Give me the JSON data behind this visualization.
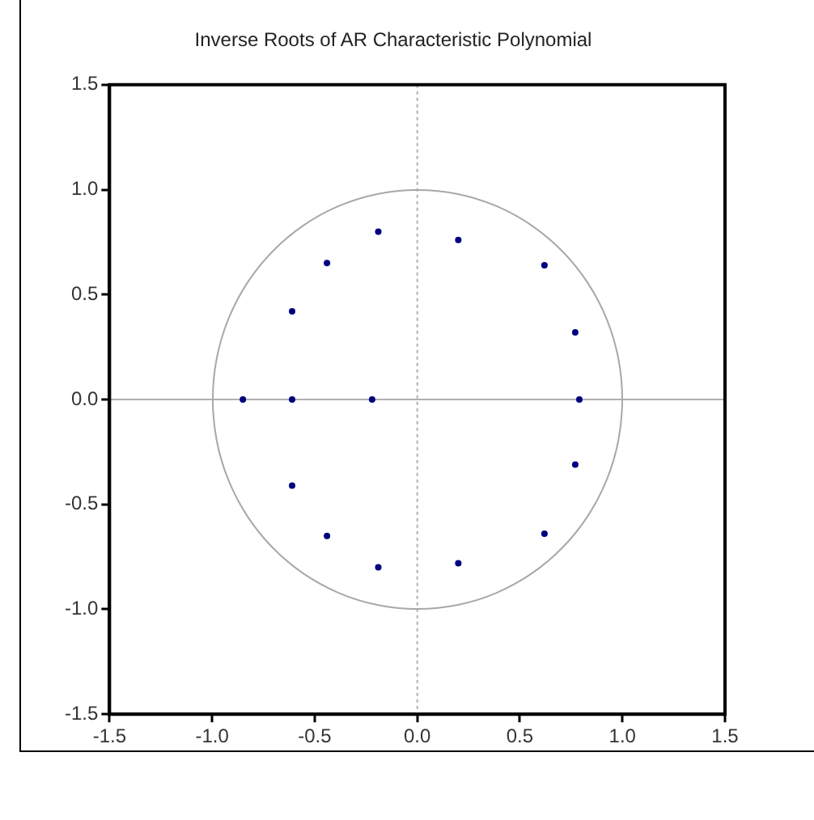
{
  "chart_data": {
    "type": "scatter",
    "title": "Inverse Roots of AR Characteristic Polynomial",
    "xlim": [
      -1.5,
      1.5
    ],
    "ylim": [
      -1.5,
      1.5
    ],
    "xticks": [
      {
        "value": -1.5,
        "label": "-1.5"
      },
      {
        "value": -1,
        "label": "-1.0"
      },
      {
        "value": -0.5,
        "label": "-0.5"
      },
      {
        "value": 0,
        "label": "0.0"
      },
      {
        "value": 0.5,
        "label": "0.5"
      },
      {
        "value": 1,
        "label": "1.0"
      },
      {
        "value": 1.5,
        "label": "1.5"
      }
    ],
    "yticks": [
      {
        "value": -1.5,
        "label": "-1.5"
      },
      {
        "value": -1,
        "label": "-1.0"
      },
      {
        "value": -0.5,
        "label": "-0.5"
      },
      {
        "value": 0,
        "label": "0.0"
      },
      {
        "value": 0.5,
        "label": "0.5"
      },
      {
        "value": 1,
        "label": "1.0"
      },
      {
        "value": 1.5,
        "label": "1.5"
      }
    ],
    "grid": false,
    "legend": false,
    "marker": "circle",
    "ref_lines": [
      {
        "axis": "x",
        "value": 0,
        "color": "#b0b0b0",
        "line_style": "dotted"
      },
      {
        "axis": "y",
        "value": 0,
        "color": "#b0b0b0"
      }
    ],
    "series": [
      {
        "color": "#000080",
        "x": [
          -0.85,
          -0.61,
          -0.22,
          -0.61,
          -0.44,
          -0.19,
          -0.61,
          -0.44,
          -0.19,
          0.2,
          0.62,
          0.77,
          0.79,
          0.77,
          0.62,
          0.2
        ],
        "values": [
          0,
          0,
          0,
          0.42,
          0.65,
          0.8,
          -0.41,
          -0.65,
          -0.8,
          0.76,
          0.64,
          0.32,
          0,
          -0.31,
          -0.64,
          -0.78
        ]
      }
    ]
  }
}
